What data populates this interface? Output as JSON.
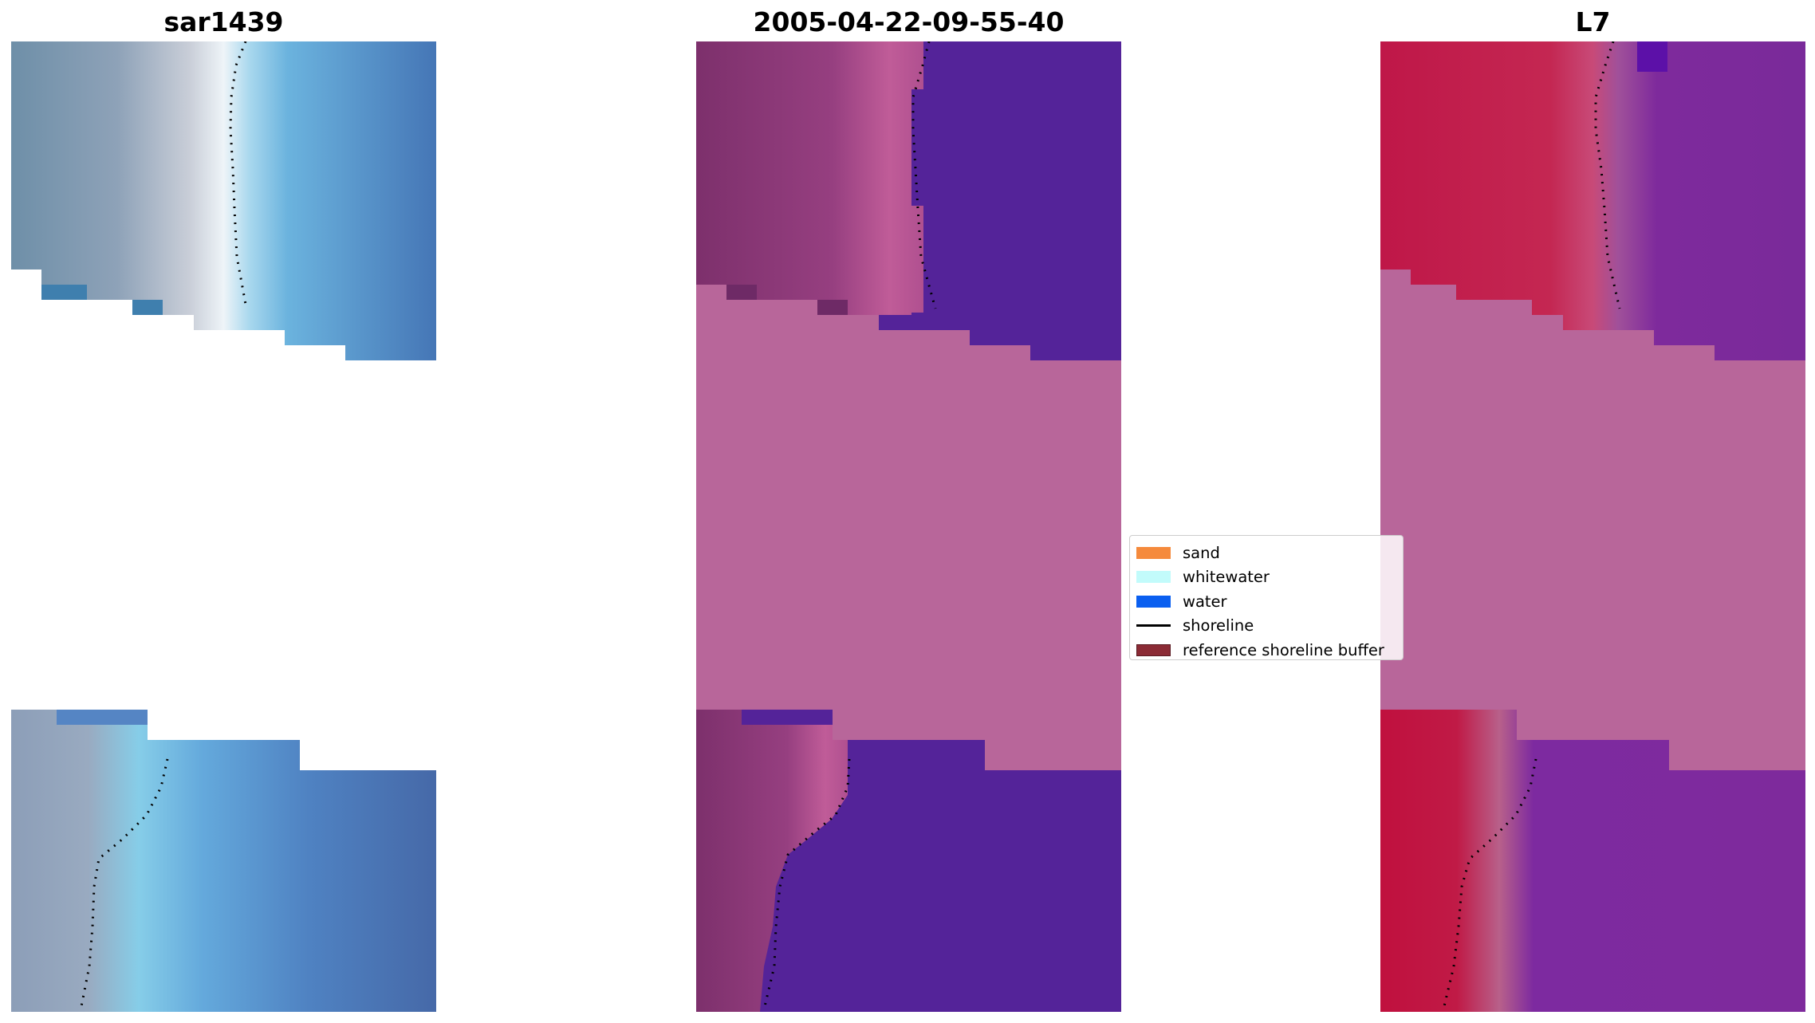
{
  "panels": [
    {
      "title": "sar1439"
    },
    {
      "title": "2005-04-22-09-55-40"
    },
    {
      "title": "L7"
    }
  ],
  "legend": {
    "items": [
      {
        "label": "sand",
        "kind": "patch",
        "color": "#f58a3c"
      },
      {
        "label": "whitewater",
        "kind": "patch",
        "color": "#c2fbfb"
      },
      {
        "label": "water",
        "kind": "patch",
        "color": "#0a5ff0"
      },
      {
        "label": "shoreline",
        "kind": "line",
        "color": "#000000"
      },
      {
        "label": "reference shoreline buffer",
        "kind": "patch",
        "color": "#8b2b35"
      }
    ]
  },
  "colors": {
    "buffer_overlay": "#b8669a",
    "classified_water": "#542399",
    "classified_land": "#8e3b78",
    "mndwi_land": "#c0154a",
    "mndwi_water": "#7e2a9c",
    "rgb_water": "#4a82c2",
    "rgb_land": "#7d95ac"
  }
}
